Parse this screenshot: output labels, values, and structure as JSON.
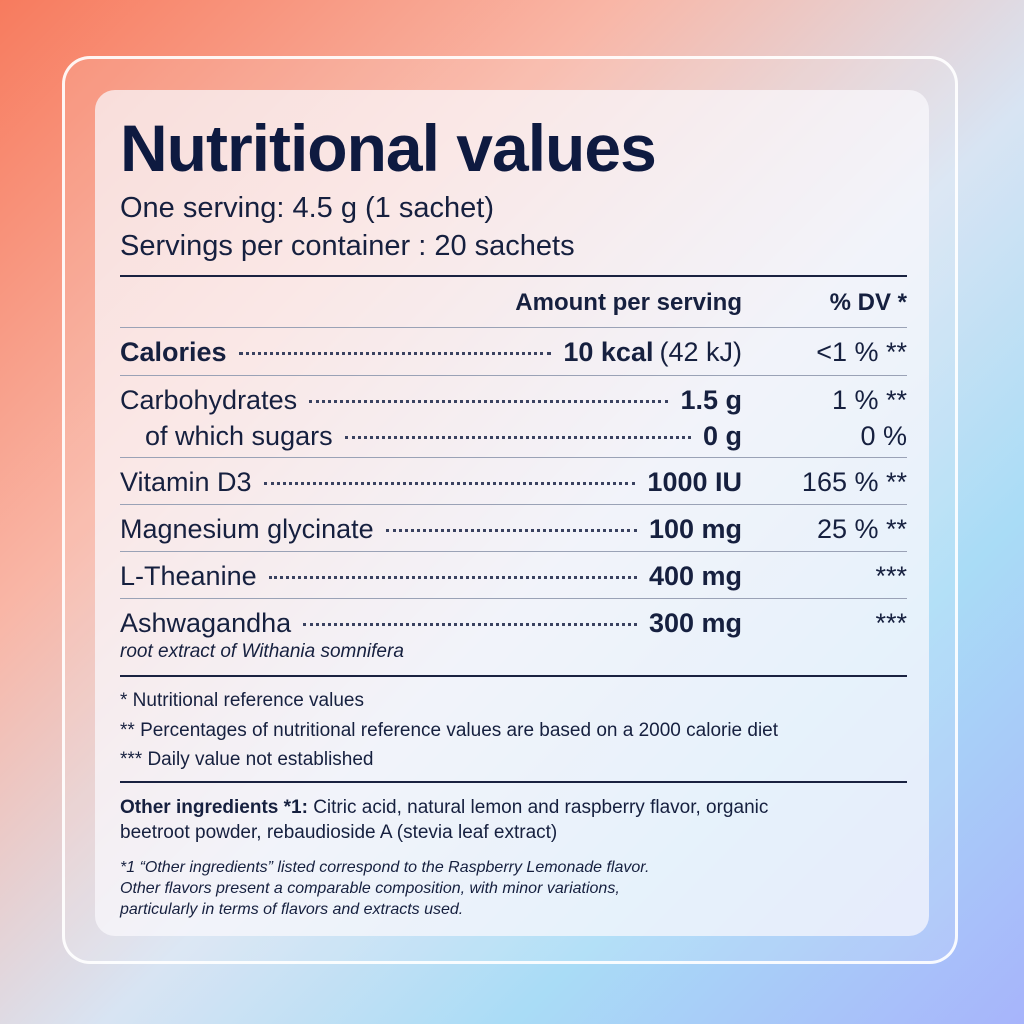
{
  "title": "Nutritional values",
  "serving": "One serving: 4.5 g (1 sachet)",
  "servings_per_container": "Servings per container :  20 sachets",
  "header": {
    "amount": "Amount per serving",
    "dv": "% DV *"
  },
  "rows": [
    {
      "name": "Calories",
      "amount": "10 kcal",
      "amount_extra": "(42 kJ)",
      "dv": "<1 % **"
    },
    {
      "name": "Carbohydrates",
      "amount": "1.5 g",
      "dv": "1 % **"
    },
    {
      "name": "of which sugars",
      "amount": "0 g",
      "dv": "0 %"
    },
    {
      "name": "Vitamin D3",
      "amount": "1000 IU",
      "dv": "165 % **"
    },
    {
      "name": "Magnesium glycinate",
      "amount": "100 mg",
      "dv": "25 % **"
    },
    {
      "name": "L-Theanine",
      "amount": "400 mg",
      "dv": "***"
    },
    {
      "name": "Ashwagandha",
      "amount": "300 mg",
      "dv": "***",
      "note": "root extract of Withania somnifera"
    }
  ],
  "footnotes": [
    "* Nutritional reference values",
    "** Percentages of nutritional reference values are based on a 2000 calorie diet",
    "*** Daily value not established"
  ],
  "other_ingredients": {
    "label": "Other ingredients *1:",
    "text": "Citric acid, natural lemon and raspberry flavor, organic beetroot powder, rebaudioside A (stevia leaf extract)"
  },
  "flavor_note": [
    "*1 “Other ingredients” listed correspond to the Raspberry Lemonade flavor.",
    "Other flavors present a comparable composition, with minor variations,",
    "particularly in terms of flavors and extracts used."
  ]
}
